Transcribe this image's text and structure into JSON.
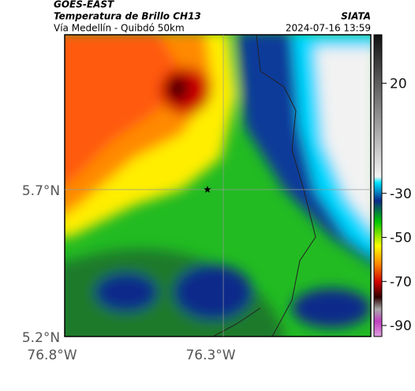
{
  "header": {
    "satellite": "GOES-EAST",
    "title": "Temperatura de Brillo CH13",
    "subtitle": "Vía Medellín - Quibdó 50km",
    "source": "SIATA",
    "datetime": "2024-07-16 13:59"
  },
  "map": {
    "xlim": [
      -76.8,
      -75.835
    ],
    "ylim": [
      5.2,
      6.227
    ],
    "xticks": [
      {
        "value": -76.8,
        "label": "76.8°W"
      },
      {
        "value": -76.3,
        "label": "76.3°W"
      }
    ],
    "yticks": [
      {
        "value": 5.2,
        "label": "5.2°N"
      },
      {
        "value": 5.7,
        "label": "5.7°N"
      }
    ],
    "marker": {
      "lon": -76.35,
      "lat": 5.7
    }
  },
  "colorbar": {
    "lim": [
      -95,
      42
    ],
    "ticks": [
      20,
      -30,
      -50,
      -70,
      -90
    ]
  }
}
